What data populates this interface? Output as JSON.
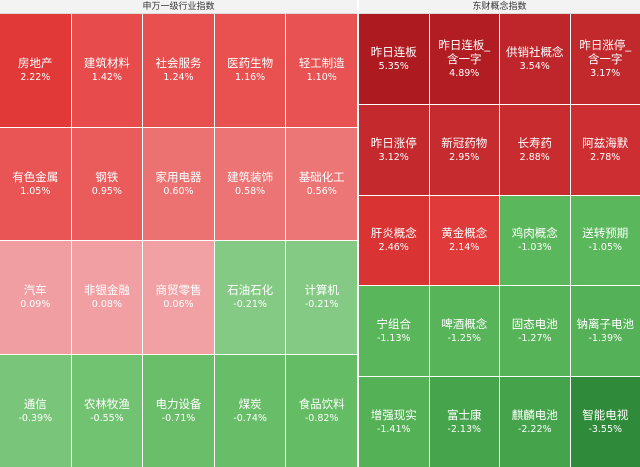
{
  "chart_data": [
    {
      "type": "heatmap",
      "title": "申万一级行业指数",
      "categories": [
        "房地产",
        "建筑材料",
        "社会服务",
        "医药生物",
        "轻工制造",
        "有色金属",
        "钢铁",
        "家用电器",
        "建筑装饰",
        "基础化工",
        "汽车",
        "非银金融",
        "商贸零售",
        "石油石化",
        "计算机",
        "通信",
        "农林牧渔",
        "电力设备",
        "煤炭",
        "食品饮料"
      ],
      "values": [
        2.22,
        1.42,
        1.24,
        1.16,
        1.1,
        1.05,
        0.95,
        0.6,
        0.58,
        0.56,
        0.09,
        0.08,
        0.06,
        -0.21,
        -0.21,
        -0.39,
        -0.55,
        -0.71,
        -0.74,
        -0.82
      ],
      "value_labels": [
        "2.22%",
        "1.42%",
        "1.24%",
        "1.16%",
        "1.10%",
        "1.05%",
        "0.95%",
        "0.60%",
        "0.58%",
        "0.56%",
        "0.09%",
        "0.08%",
        "0.06%",
        "-0.21%",
        "-0.21%",
        "-0.39%",
        "-0.55%",
        "-0.71%",
        "-0.74%",
        "-0.82%"
      ]
    },
    {
      "type": "heatmap",
      "title": "东财概念指数",
      "categories": [
        "昨日连板",
        "昨日连板_含一字",
        "供销社概念",
        "昨日涨停_含一字",
        "昨日涨停",
        "新冠药物",
        "长寿药",
        "阿兹海默",
        "肝炎概念",
        "黄金概念",
        "鸡肉概念",
        "送转预期",
        "宁组合",
        "啤酒概念",
        "固态电池",
        "钠离子电池",
        "增强现实",
        "富士康",
        "麒麟电池",
        "智能电视"
      ],
      "values": [
        5.35,
        4.89,
        3.54,
        3.17,
        3.12,
        2.95,
        2.88,
        2.78,
        2.46,
        2.14,
        -1.03,
        -1.05,
        -1.13,
        -1.25,
        -1.27,
        -1.39,
        -1.41,
        -2.13,
        -2.22,
        -3.55
      ],
      "value_labels": [
        "5.35%",
        "4.89%",
        "3.54%",
        "3.17%",
        "3.12%",
        "2.95%",
        "2.88%",
        "2.78%",
        "2.46%",
        "2.14%",
        "-1.03%",
        "-1.05%",
        "-1.13%",
        "-1.25%",
        "-1.27%",
        "-1.39%",
        "-1.41%",
        "-2.13%",
        "-2.22%",
        "-3.55%"
      ]
    }
  ]
}
